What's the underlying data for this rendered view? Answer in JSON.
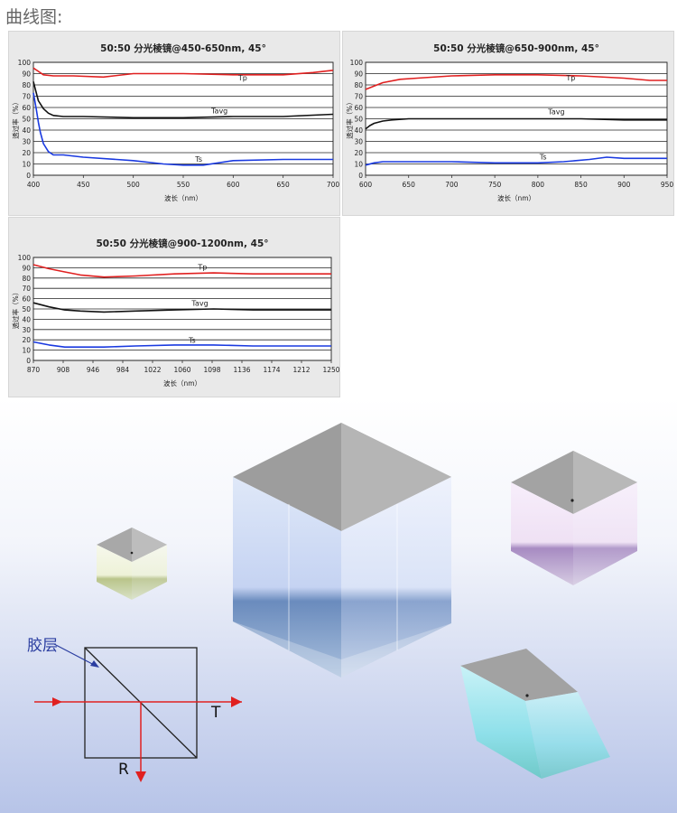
{
  "header": {
    "title": "曲线图:"
  },
  "chart_data": [
    {
      "type": "line",
      "title": "50:50 分光棱镜@450-650nm, 45°",
      "xlabel": "波长（nm）",
      "ylabel": "透过率（%）",
      "xlim": [
        400,
        700
      ],
      "ylim": [
        0,
        100
      ],
      "xticks": [
        "400",
        "450",
        "500",
        "550",
        "600",
        "650",
        "700"
      ],
      "yticks": [
        "0",
        "10",
        "20",
        "30",
        "40",
        "50",
        "60",
        "70",
        "80",
        "90",
        "100"
      ],
      "grid": "horizontal",
      "series": [
        {
          "name": "Tp",
          "color": "#e02020",
          "x": [
            400,
            405,
            410,
            420,
            440,
            470,
            500,
            550,
            600,
            650,
            680,
            700
          ],
          "y": [
            95,
            92,
            89,
            88,
            88,
            87,
            90,
            90,
            89,
            89,
            91,
            93
          ]
        },
        {
          "name": "Tavg",
          "color": "#111111",
          "x": [
            400,
            402,
            405,
            410,
            415,
            420,
            430,
            450,
            500,
            550,
            600,
            650,
            700
          ],
          "y": [
            83,
            76,
            66,
            59,
            55,
            53,
            52,
            52,
            51,
            51,
            52,
            52,
            54
          ]
        },
        {
          "name": "Ts",
          "color": "#1a3ae0",
          "x": [
            400,
            401,
            403,
            405,
            407,
            410,
            415,
            420,
            430,
            450,
            500,
            530,
            550,
            570,
            600,
            650,
            700
          ],
          "y": [
            73,
            68,
            58,
            47,
            38,
            28,
            21,
            18,
            18,
            16,
            13,
            10,
            9,
            9,
            13,
            14,
            14
          ]
        }
      ],
      "labels": [
        {
          "text": "Tp",
          "x": 605,
          "y": 84
        },
        {
          "text": "Tavg",
          "x": 578,
          "y": 55
        },
        {
          "text": "Ts",
          "x": 562,
          "y": 12
        }
      ]
    },
    {
      "type": "line",
      "title": "50:50 分光棱镜@650-900nm, 45°",
      "xlabel": "波长（nm）",
      "ylabel": "透过率（%）",
      "xlim": [
        600,
        950
      ],
      "ylim": [
        0,
        100
      ],
      "xticks": [
        "600",
        "650",
        "700",
        "750",
        "800",
        "850",
        "900",
        "950"
      ],
      "yticks": [
        "0",
        "10",
        "20",
        "30",
        "40",
        "50",
        "60",
        "70",
        "80",
        "90",
        "100"
      ],
      "grid": "horizontal",
      "series": [
        {
          "name": "Tp",
          "color": "#e02020",
          "x": [
            600,
            610,
            620,
            640,
            660,
            700,
            750,
            800,
            850,
            900,
            930,
            950
          ],
          "y": [
            76,
            79,
            82,
            85,
            86,
            88,
            89,
            89,
            88,
            86,
            84,
            84
          ]
        },
        {
          "name": "Tavg",
          "color": "#111111",
          "x": [
            600,
            605,
            610,
            620,
            630,
            650,
            700,
            750,
            800,
            850,
            900,
            950
          ],
          "y": [
            41,
            44,
            46,
            48,
            49,
            50,
            50,
            50,
            50,
            50,
            49,
            49
          ]
        },
        {
          "name": "Ts",
          "color": "#1a3ae0",
          "x": [
            600,
            610,
            620,
            640,
            660,
            700,
            750,
            800,
            830,
            860,
            880,
            900,
            930,
            950
          ],
          "y": [
            9,
            11,
            12,
            12,
            12,
            12,
            11,
            11,
            12,
            14,
            16,
            15,
            15,
            15
          ]
        }
      ],
      "labels": [
        {
          "text": "Tp",
          "x": 833,
          "y": 84
        },
        {
          "text": "Tavg",
          "x": 812,
          "y": 54
        },
        {
          "text": "Ts",
          "x": 802,
          "y": 14
        }
      ]
    },
    {
      "type": "line",
      "title": "50:50 分光棱镜@900-1200nm, 45°",
      "xlabel": "波长（nm）",
      "ylabel": "透过率（%）",
      "xlim": [
        870,
        1250
      ],
      "ylim": [
        0,
        100
      ],
      "xticks": [
        "870",
        "908",
        "946",
        "984",
        "1022",
        "1060",
        "1098",
        "1136",
        "1174",
        "1212",
        "1250"
      ],
      "yticks": [
        "0",
        "10",
        "20",
        "30",
        "40",
        "50",
        "60",
        "70",
        "80",
        "90",
        "100"
      ],
      "grid": "horizontal",
      "series": [
        {
          "name": "Tp",
          "color": "#e02020",
          "x": [
            870,
            890,
            910,
            930,
            960,
            1000,
            1050,
            1100,
            1150,
            1200,
            1250
          ],
          "y": [
            93,
            89,
            86,
            83,
            81,
            82,
            84,
            85,
            84,
            84,
            84
          ]
        },
        {
          "name": "Tavg",
          "color": "#111111",
          "x": [
            870,
            890,
            910,
            930,
            960,
            1000,
            1050,
            1100,
            1150,
            1200,
            1250
          ],
          "y": [
            56,
            52,
            49,
            48,
            47,
            48,
            49,
            50,
            49,
            49,
            49
          ]
        },
        {
          "name": "Ts",
          "color": "#1a3ae0",
          "x": [
            870,
            890,
            910,
            930,
            960,
            1000,
            1050,
            1100,
            1150,
            1200,
            1250
          ],
          "y": [
            18,
            15,
            13,
            13,
            13,
            14,
            15,
            15,
            14,
            14,
            14
          ]
        }
      ],
      "labels": [
        {
          "text": "Tp",
          "x": 1080,
          "y": 88
        },
        {
          "text": "Tavg",
          "x": 1072,
          "y": 53
        },
        {
          "text": "Ts",
          "x": 1068,
          "y": 17
        }
      ]
    }
  ],
  "diagram": {
    "layer_label": "胶层",
    "transmit_label": "T",
    "reflect_label": "R",
    "colors": {
      "arrow": "#e02020",
      "box": "#222222",
      "label": "#2a3da0"
    }
  }
}
